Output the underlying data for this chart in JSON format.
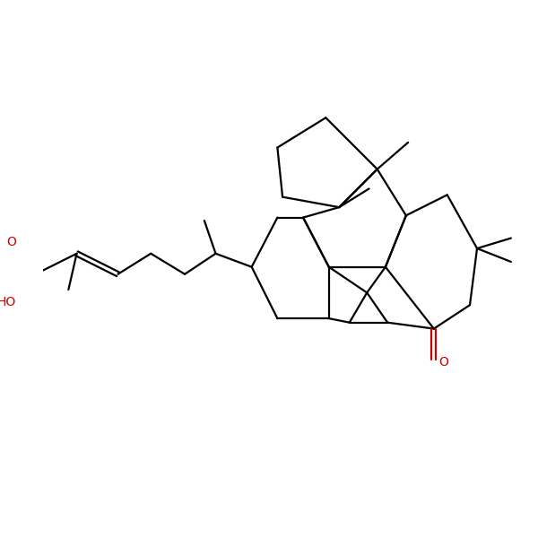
{
  "bg": "#ffffff",
  "bc": "#000000",
  "rc": "#cc0000",
  "lw": 1.6,
  "fs": 10.0,
  "xlim": [
    0,
    10
  ],
  "ylim": [
    1,
    8.5
  ]
}
